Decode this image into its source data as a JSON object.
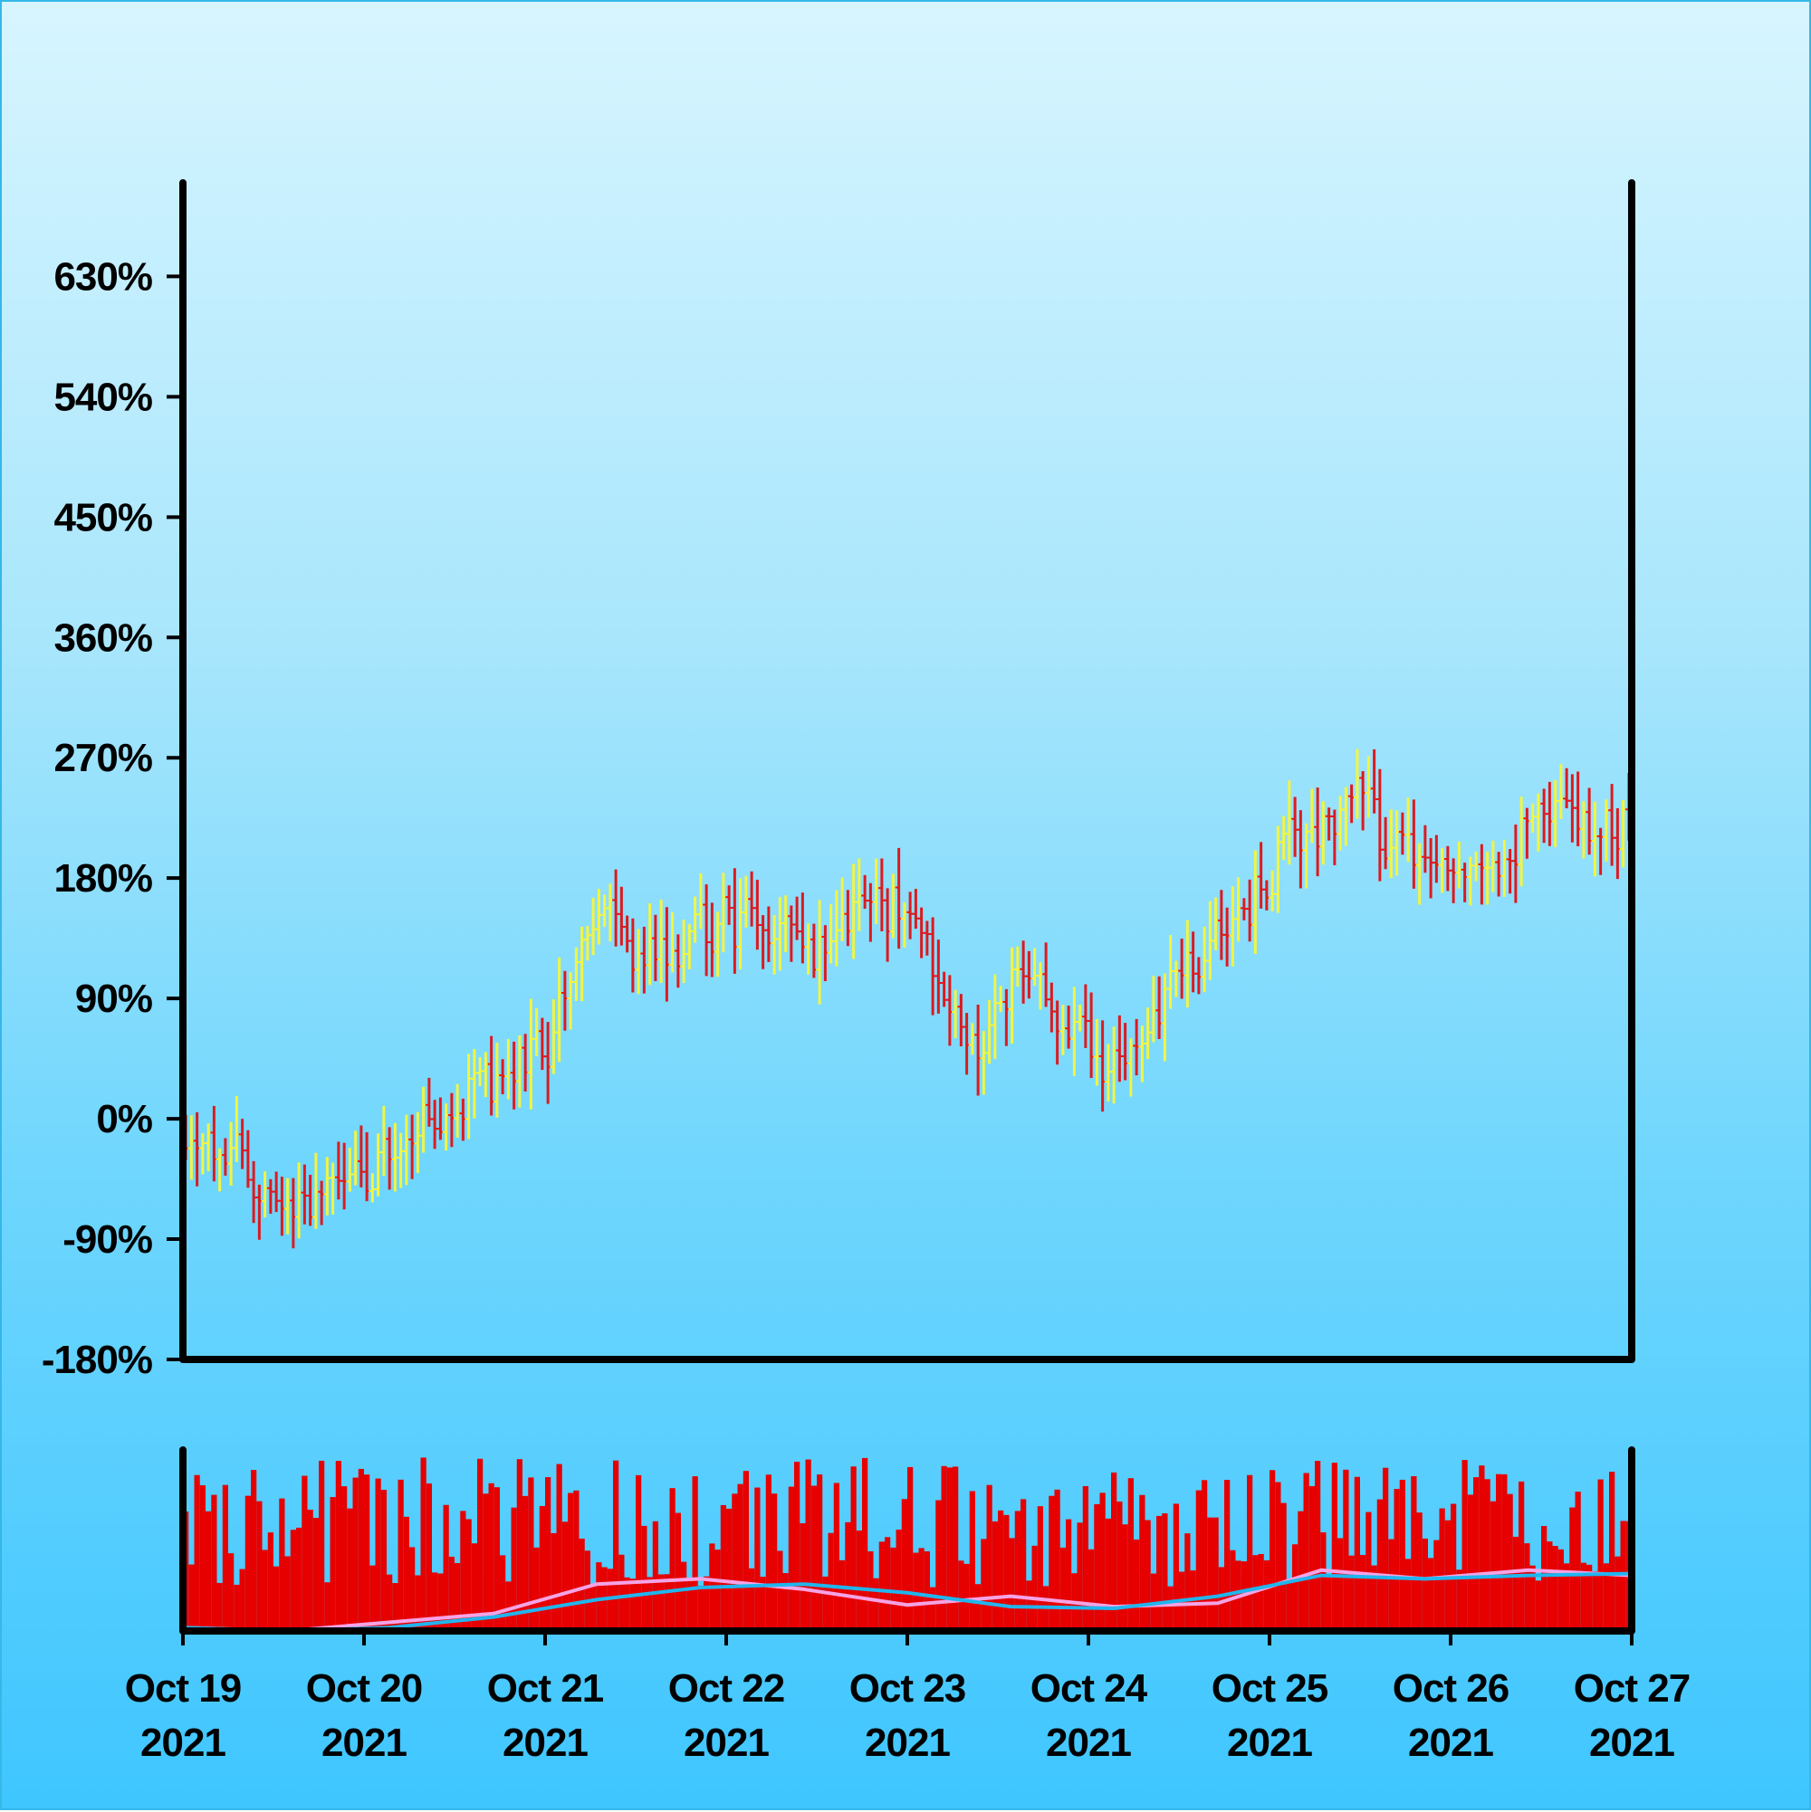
{
  "colors": {
    "bar_up": "#f2f542",
    "bar_down": "#dc1a1f",
    "volume": "#e60000",
    "volume_ma_fast": "#f5a3e6",
    "volume_ma_slow": "#21b5ee",
    "axis": "#000000"
  },
  "chart_data": {
    "type": "ohlc",
    "title": "",
    "xlabel": "",
    "ylabel": "",
    "ylim": [
      -180,
      700
    ],
    "y_ticks": [
      "-180%",
      "-90%",
      "0%",
      "90%",
      "180%",
      "270%",
      "360%",
      "450%",
      "540%",
      "630%"
    ],
    "y_tick_values": [
      -180,
      -90,
      0,
      90,
      180,
      270,
      360,
      450,
      540,
      630
    ],
    "x_range": [
      "2021-10-19",
      "2021-10-27"
    ],
    "x_ticks": [
      {
        "date": "2021-10-19",
        "line1": "Oct 19",
        "line2": "2021"
      },
      {
        "date": "2021-10-20",
        "line1": "Oct 20",
        "line2": "2021"
      },
      {
        "date": "2021-10-21",
        "line1": "Oct 21",
        "line2": "2021"
      },
      {
        "date": "2021-10-22",
        "line1": "Oct 22",
        "line2": "2021"
      },
      {
        "date": "2021-10-23",
        "line1": "Oct 23",
        "line2": "2021"
      },
      {
        "date": "2021-10-24",
        "line1": "Oct 24",
        "line2": "2021"
      },
      {
        "date": "2021-10-25",
        "line1": "Oct 25",
        "line2": "2021"
      },
      {
        "date": "2021-10-26",
        "line1": "Oct 26",
        "line2": "2021"
      },
      {
        "date": "2021-10-27",
        "line1": "Oct 27",
        "line2": "2021"
      }
    ],
    "bar_interval_hours": 0.75,
    "approx_close_trend": [
      {
        "date": "2021-10-19 00:00",
        "close": -20
      },
      {
        "date": "2021-10-19 12:00",
        "close": -60
      },
      {
        "date": "2021-10-20 00:00",
        "close": -40
      },
      {
        "date": "2021-10-20 12:00",
        "close": 20
      },
      {
        "date": "2021-10-21 00:00",
        "close": 40
      },
      {
        "date": "2021-10-21 06:00",
        "close": 160
      },
      {
        "date": "2021-10-21 12:00",
        "close": 110
      },
      {
        "date": "2021-10-22 00:00",
        "close": 150
      },
      {
        "date": "2021-10-22 12:00",
        "close": 130
      },
      {
        "date": "2021-10-23 00:00",
        "close": 170
      },
      {
        "date": "2021-10-23 08:00",
        "close": 50
      },
      {
        "date": "2021-10-23 16:00",
        "close": 110
      },
      {
        "date": "2021-10-24 00:00",
        "close": 40
      },
      {
        "date": "2021-10-24 12:00",
        "close": 90
      },
      {
        "date": "2021-10-25 00:00",
        "close": 190
      },
      {
        "date": "2021-10-25 08:00",
        "close": 240
      },
      {
        "date": "2021-10-25 16:00",
        "close": 210
      },
      {
        "date": "2021-10-26 00:00",
        "close": 170
      },
      {
        "date": "2021-10-26 12:00",
        "close": 230
      },
      {
        "date": "2021-10-27 00:00",
        "close": 220
      }
    ],
    "approx_high_max": 305,
    "approx_low_min": -110,
    "volume": {
      "approx_max": 1.0,
      "ma_fast_trend": [
        0.02,
        0.0,
        0.05,
        0.1,
        0.27,
        0.3,
        0.24,
        0.15,
        0.2,
        0.14,
        0.16,
        0.35,
        0.3,
        0.35,
        0.32
      ],
      "ma_slow_trend": [
        0.02,
        0.0,
        0.02,
        0.08,
        0.18,
        0.25,
        0.27,
        0.22,
        0.14,
        0.13,
        0.2,
        0.32,
        0.3,
        0.32,
        0.33
      ]
    }
  }
}
